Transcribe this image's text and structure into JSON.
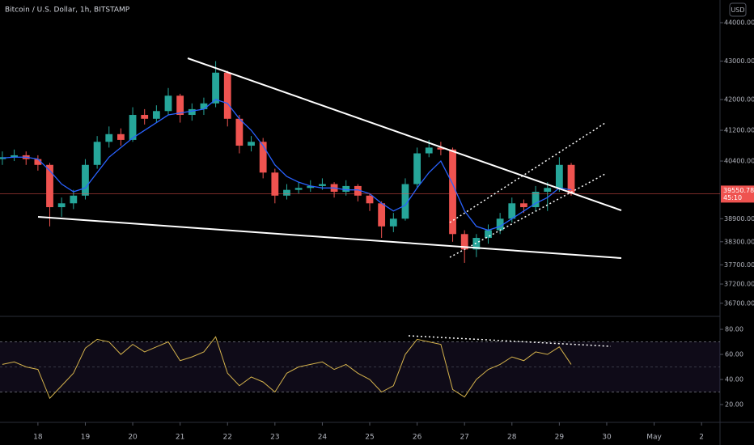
{
  "chart_data": [
    {
      "type": "candlestick",
      "title": "Bitcoin / U.S. Dollar, 1h, BITSTAMP",
      "currency": "USD",
      "x": [
        17.25,
        17.5,
        17.75,
        18.0,
        18.25,
        18.5,
        18.75,
        19.0,
        19.25,
        19.5,
        19.75,
        20.0,
        20.25,
        20.5,
        20.75,
        21.0,
        21.25,
        21.5,
        21.75,
        22.0,
        22.25,
        22.5,
        22.75,
        23.0,
        23.25,
        23.5,
        23.75,
        24.0,
        24.25,
        24.5,
        24.75,
        25.0,
        25.25,
        25.5,
        25.75,
        26.0,
        26.25,
        26.5,
        26.75,
        27.0,
        27.25,
        27.5,
        27.75,
        28.0,
        28.25,
        28.5,
        28.75,
        29.0,
        29.25
      ],
      "open": [
        40450,
        40500,
        40550,
        40450,
        40300,
        39200,
        39300,
        39500,
        40300,
        40900,
        41100,
        40950,
        41600,
        41500,
        41700,
        42100,
        41600,
        41750,
        41900,
        42700,
        41500,
        40800,
        40900,
        40100,
        39500,
        39650,
        39700,
        39750,
        39800,
        39600,
        39750,
        39500,
        39300,
        38700,
        38900,
        39800,
        40600,
        40750,
        40700,
        38500,
        38100,
        38400,
        38600,
        38900,
        39300,
        39200,
        39600,
        39700,
        40300
      ],
      "high": [
        40650,
        40700,
        40650,
        40550,
        40350,
        39450,
        39650,
        40450,
        41050,
        41300,
        41250,
        41800,
        41750,
        41850,
        42300,
        42150,
        41900,
        42050,
        43000,
        42750,
        41600,
        41050,
        41000,
        40200,
        39800,
        39850,
        39900,
        39950,
        39850,
        39900,
        39800,
        39550,
        39350,
        39050,
        39950,
        40750,
        40950,
        40900,
        40750,
        38600,
        38500,
        38750,
        39050,
        39450,
        39400,
        39750,
        39850,
        40500,
        40350
      ],
      "low": [
        40300,
        40400,
        40300,
        40150,
        38700,
        38950,
        39150,
        39400,
        40200,
        40750,
        40800,
        40900,
        41350,
        41400,
        41600,
        41400,
        41450,
        41600,
        41800,
        41300,
        40600,
        40650,
        39950,
        39300,
        39400,
        39550,
        39600,
        39650,
        39450,
        39500,
        39350,
        39100,
        38400,
        38550,
        38850,
        39700,
        40500,
        40550,
        38300,
        37750,
        37900,
        38250,
        38500,
        38800,
        39050,
        39100,
        39100,
        39600,
        39500
      ],
      "close": [
        40500,
        40550,
        40450,
        40300,
        39200,
        39300,
        39500,
        40300,
        40900,
        41100,
        40950,
        41600,
        41500,
        41700,
        42100,
        41600,
        41750,
        41900,
        42700,
        41500,
        40800,
        40900,
        40100,
        39500,
        39650,
        39700,
        39750,
        39800,
        39600,
        39750,
        39500,
        39300,
        38700,
        38900,
        39800,
        40600,
        40750,
        40700,
        38500,
        38100,
        38400,
        38600,
        38900,
        39300,
        39200,
        39600,
        39700,
        40300,
        39550.78
      ],
      "ma": [
        40480,
        40500,
        40500,
        40450,
        40150,
        39800,
        39600,
        39700,
        40100,
        40500,
        40750,
        41000,
        41200,
        41400,
        41600,
        41650,
        41700,
        41750,
        42000,
        41900,
        41500,
        41200,
        40800,
        40300,
        40000,
        39850,
        39750,
        39700,
        39700,
        39650,
        39650,
        39550,
        39300,
        39100,
        39250,
        39700,
        40100,
        40400,
        39800,
        39100,
        38700,
        38600,
        38700,
        38900,
        39100,
        39300,
        39450,
        39700,
        39650
      ],
      "up_color": "#26a69a",
      "down_color": "#ef5350",
      "ma_color": "#2962ff",
      "xlim": [
        17.2,
        32.39
      ],
      "xticks": [
        18,
        19,
        20,
        21,
        22,
        23,
        24,
        25,
        26,
        27,
        28,
        29,
        30,
        {
          "value": 31,
          "label": "May"
        },
        {
          "value": 32,
          "label": "2"
        }
      ],
      "ylim": [
        36380,
        44590
      ],
      "yticks": [
        {
          "value": 44000,
          "label": "44000.00"
        },
        {
          "value": 43000,
          "label": "43000.00"
        },
        {
          "value": 42000,
          "label": "42000.00"
        },
        {
          "value": 41200,
          "label": "41200.00"
        },
        {
          "value": 40400,
          "label": "40400.00"
        },
        {
          "value": 38900,
          "label": "38900.00"
        },
        {
          "value": 38300,
          "label": "38300.00"
        },
        {
          "value": 37700,
          "label": "37700.00"
        },
        {
          "value": 37200,
          "label": "37200.00"
        },
        {
          "value": 36700,
          "label": "36700.00"
        }
      ],
      "last_price": {
        "value": 39550.78,
        "label": "39550.78"
      },
      "countdown": "45:10"
    },
    {
      "type": "line",
      "x": [
        17.25,
        17.5,
        17.75,
        18.0,
        18.25,
        18.5,
        18.75,
        19.0,
        19.25,
        19.5,
        19.75,
        20.0,
        20.25,
        20.5,
        20.75,
        21.0,
        21.25,
        21.5,
        21.75,
        22.0,
        22.25,
        22.5,
        22.75,
        23.0,
        23.25,
        23.5,
        23.75,
        24.0,
        24.25,
        24.5,
        24.75,
        25.0,
        25.25,
        25.5,
        25.75,
        26.0,
        26.25,
        26.5,
        26.75,
        27.0,
        27.25,
        27.5,
        27.75,
        28.0,
        28.25,
        28.5,
        28.75,
        29.0,
        29.25
      ],
      "values": [
        52,
        54,
        50,
        48,
        25,
        35,
        45,
        65,
        72,
        70,
        60,
        68,
        62,
        66,
        70,
        55,
        58,
        62,
        74,
        45,
        35,
        42,
        38,
        30,
        45,
        50,
        52,
        54,
        48,
        52,
        45,
        40,
        30,
        35,
        60,
        72,
        70,
        68,
        32,
        26,
        40,
        48,
        52,
        58,
        55,
        62,
        60,
        66,
        52
      ],
      "color": "#d4b24c",
      "xlim": [
        17.2,
        32.39
      ],
      "ylim": [
        7.1,
        89.7
      ],
      "yticks": [
        {
          "value": 80,
          "label": "80.00"
        },
        {
          "value": 60,
          "label": "60.00"
        },
        {
          "value": 40,
          "label": "40.00"
        },
        {
          "value": 20,
          "label": "20.00"
        }
      ],
      "band": [
        30,
        70
      ],
      "midline": 50
    }
  ]
}
